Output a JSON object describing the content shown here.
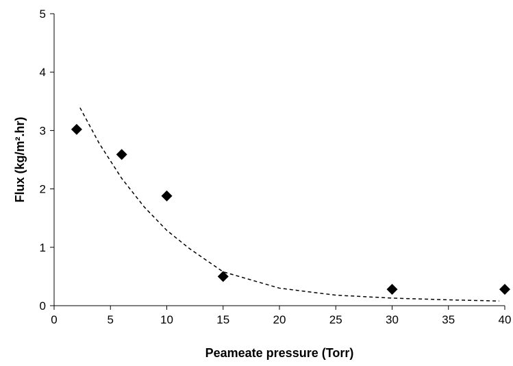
{
  "chart_data": {
    "type": "scatter",
    "xlabel": "Peameate pressure (Torr)",
    "ylabel": "Flux (kg/m².hr)",
    "xlim": [
      0,
      40
    ],
    "xticks": [
      0,
      5,
      10,
      15,
      20,
      25,
      30,
      35,
      40
    ],
    "ylim": [
      0,
      5
    ],
    "yticks": [
      0,
      1,
      2,
      3,
      4,
      5
    ],
    "grid": false,
    "series": [
      {
        "style": "markers",
        "marker": "diamond",
        "color": "#000000",
        "x": [
          2,
          6,
          10,
          15,
          30,
          40
        ],
        "values": [
          3.02,
          2.59,
          1.88,
          0.5,
          0.28,
          0.28
        ]
      },
      {
        "style": "dashed-line",
        "color": "#000000",
        "x": [
          2.3,
          4,
          6,
          8,
          10,
          12,
          15,
          20,
          25,
          30,
          35,
          39.5
        ],
        "values": [
          3.39,
          2.78,
          2.18,
          1.69,
          1.29,
          0.98,
          0.58,
          0.3,
          0.18,
          0.13,
          0.1,
          0.08
        ]
      }
    ]
  }
}
